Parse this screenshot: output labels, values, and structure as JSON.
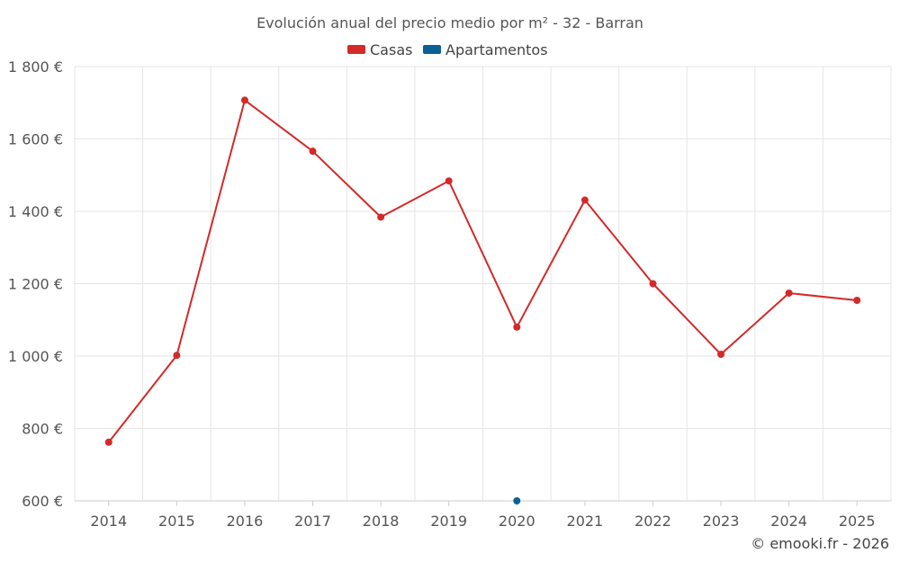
{
  "chart_data": {
    "type": "line",
    "title": "Evolución anual del precio medio por m² - 32 - Barran",
    "categories": [
      "2014",
      "2015",
      "2016",
      "2017",
      "2018",
      "2019",
      "2020",
      "2021",
      "2022",
      "2023",
      "2024",
      "2025"
    ],
    "series": [
      {
        "name": "Casas",
        "color": "#d32a2a",
        "values": [
          762,
          1002,
          1707,
          1566,
          1384,
          1484,
          1080,
          1431,
          1200,
          1005,
          1174,
          1154
        ]
      },
      {
        "name": "Apartamentos",
        "color": "#0b6094",
        "values": [
          null,
          null,
          null,
          null,
          null,
          null,
          600,
          null,
          null,
          null,
          null,
          null
        ]
      }
    ],
    "y_ticks": [
      600,
      800,
      1000,
      1200,
      1400,
      1600,
      1800
    ],
    "y_tick_labels": [
      "600 €",
      "800 €",
      "1 000 €",
      "1 200 €",
      "1 400 €",
      "1 600 €",
      "1 800 €"
    ],
    "ylim": [
      600,
      1800
    ],
    "grid": true,
    "legend_position": "top-center",
    "xlabel": "",
    "ylabel": ""
  },
  "credit": "© emooki.fr - 2026"
}
